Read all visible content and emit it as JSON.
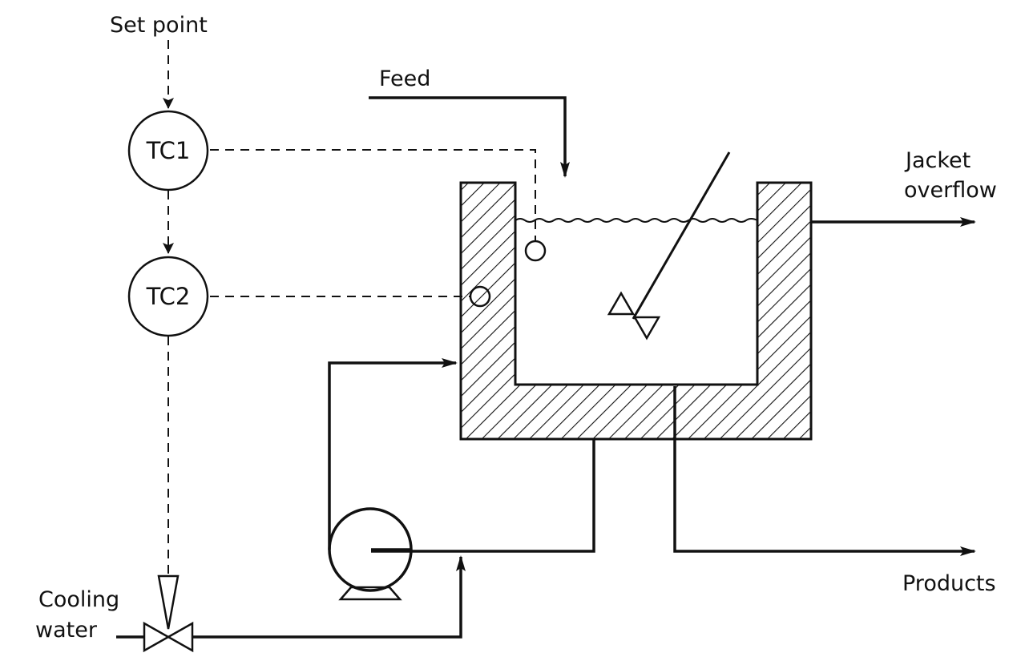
{
  "labels": {
    "set_point": "Set point",
    "feed": "Feed",
    "jacket_overflow_line1": "Jacket",
    "jacket_overflow_line2": "overflow",
    "cooling_water_line1": "Cooling",
    "cooling_water_line2": "water",
    "products": "Products"
  },
  "controllers": {
    "tc1": "TC1",
    "tc2": "TC2"
  }
}
